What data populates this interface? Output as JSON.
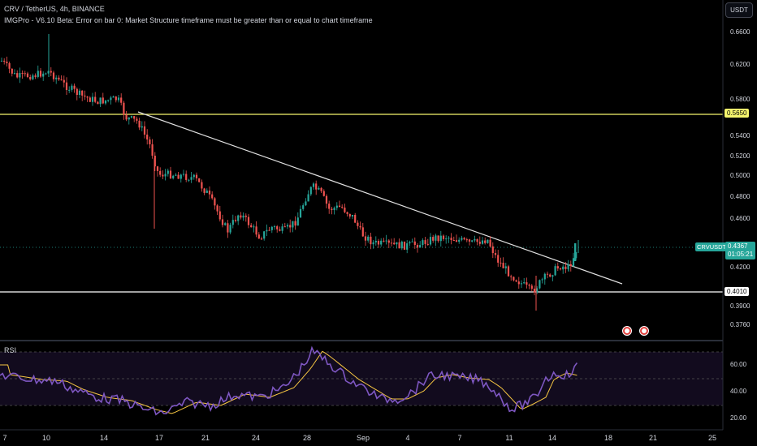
{
  "header": {
    "title": "CRV / TetherUS, 4h, BINANCE",
    "indicator_error": "IMGPro - V6.10 Beta: Error on bar 0: Market Structure timeframe must be greater than or equal to chart timeframe"
  },
  "currency_button": "USDT",
  "price_axis": {
    "labels": [
      "0.6600",
      "0.6200",
      "0.5800",
      "0.5400",
      "0.5200",
      "0.5000",
      "0.4800",
      "0.4600",
      "0.4200",
      "0.3900",
      "0.3760"
    ],
    "hline_upper": "0.5650",
    "hline_lower": "0.4010",
    "symbol_tag": "CRVUSDT",
    "current_price": "0.4367",
    "countdown": "01:05:21"
  },
  "rsi": {
    "label": "RSI",
    "axis_labels": [
      "60.00",
      "40.00",
      "20.00"
    ]
  },
  "time_axis": [
    "7",
    "10",
    "14",
    "17",
    "21",
    "24",
    "28",
    "Sep",
    "4",
    "7",
    "11",
    "14",
    "18",
    "21",
    "25"
  ],
  "colors": {
    "up": "#26a69a",
    "down": "#ef5350",
    "hline_upper": "#f5f56d",
    "hline_lower": "#ffffff",
    "rsi_line": "#7e57c2",
    "rsi_ma": "#f5c542"
  }
}
